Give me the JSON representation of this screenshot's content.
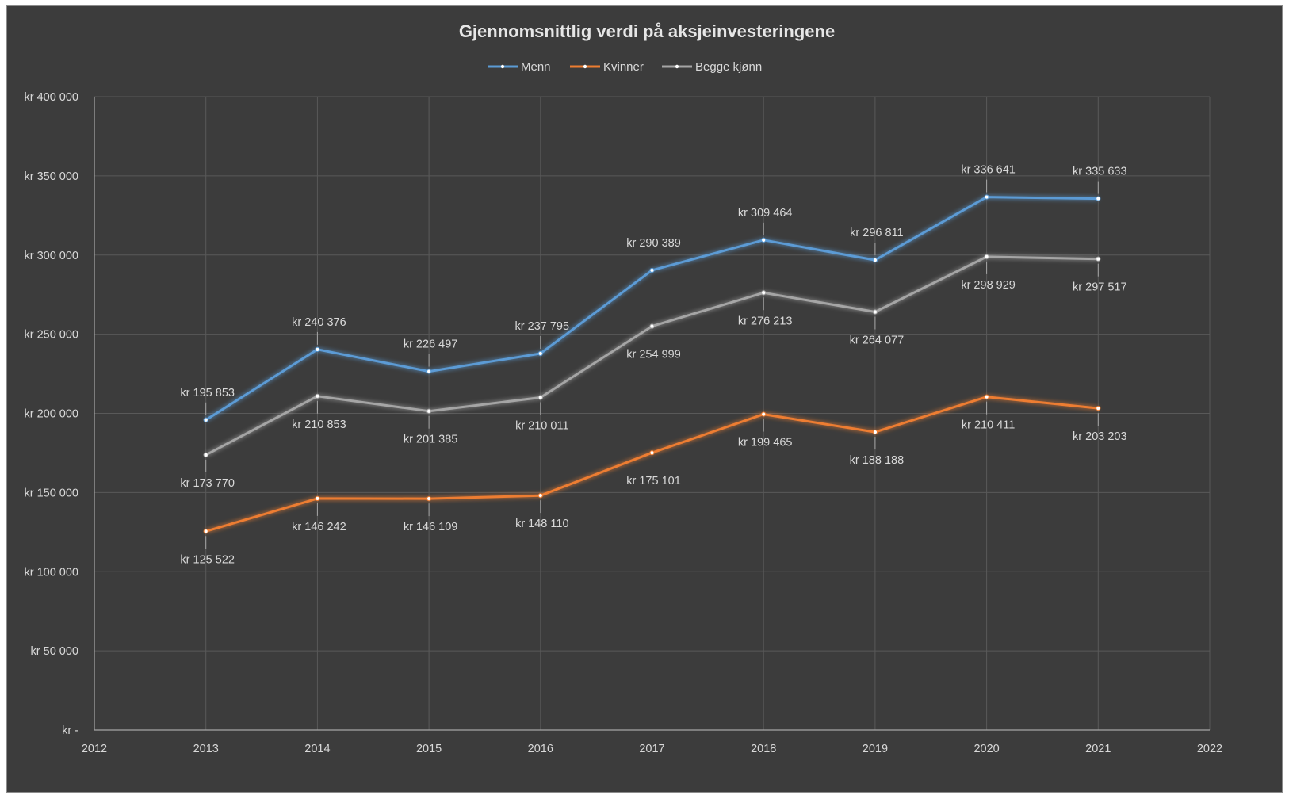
{
  "chart_data": {
    "type": "line",
    "title": "Gjennomsnittlig verdi på aksjeinvesteringene",
    "xlim": [
      2012,
      2022
    ],
    "ylim": [
      0,
      400000
    ],
    "x_ticks": [
      "2012",
      "2013",
      "2014",
      "2015",
      "2016",
      "2017",
      "2018",
      "2019",
      "2020",
      "2021",
      "2022"
    ],
    "y_ticks": [
      "kr -",
      "kr 50 000",
      "kr 100 000",
      "kr 150 000",
      "kr 200 000",
      "kr 250 000",
      "kr 300 000",
      "kr 350 000",
      "kr 400 000"
    ],
    "x": [
      2013,
      2014,
      2015,
      2016,
      2017,
      2018,
      2019,
      2020,
      2021
    ],
    "grid": true,
    "legend_position": "top-center",
    "series": [
      {
        "name": "Menn",
        "color": "#5b9bd5",
        "values": [
          195853,
          240376,
          226497,
          237795,
          290389,
          309464,
          296811,
          336641,
          335633
        ],
        "labels": [
          "kr 195 853",
          "kr 240 376",
          "kr 226 497",
          "kr 237 795",
          "kr 290 389",
          "kr 309 464",
          "kr 296 811",
          "kr 336 641",
          "kr 335 633"
        ],
        "label_side": "above"
      },
      {
        "name": "Kvinner",
        "color": "#ed7d31",
        "values": [
          125522,
          146242,
          146109,
          148110,
          175101,
          199465,
          188188,
          210411,
          203203
        ],
        "labels": [
          "kr 125 522",
          "kr 146 242",
          "kr 146 109",
          "kr 148 110",
          "kr 175 101",
          "kr 199 465",
          "kr 188 188",
          "kr 210 411",
          "kr 203 203"
        ],
        "label_side": "below"
      },
      {
        "name": "Begge kjønn",
        "color": "#a5a5a5",
        "values": [
          173770,
          210853,
          201385,
          210011,
          254999,
          276213,
          264077,
          298929,
          297517
        ],
        "labels": [
          "kr 173 770",
          "kr 210 853",
          "kr 201 385",
          "kr 210 011",
          "kr 254 999",
          "kr 276 213",
          "kr 264 077",
          "kr 298 929",
          "kr 297 517"
        ],
        "label_side": "below"
      }
    ]
  }
}
